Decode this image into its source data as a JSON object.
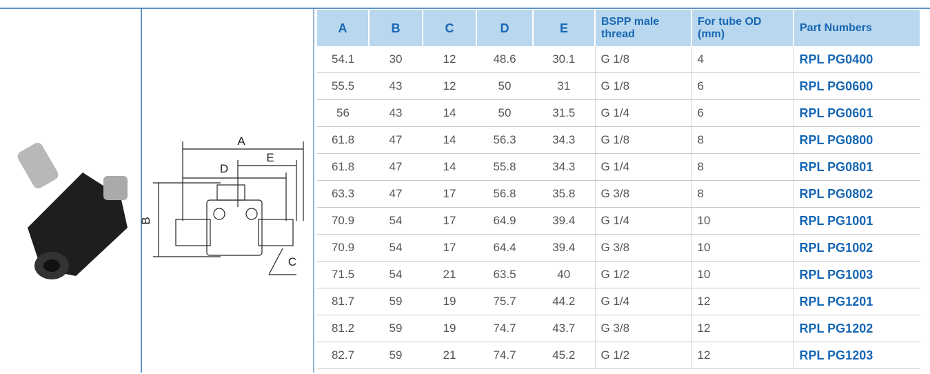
{
  "table": {
    "headers": [
      "A",
      "B",
      "C",
      "D",
      "E",
      "BSPP male thread",
      "For tube OD (mm)",
      "Part Numbers"
    ],
    "rows": [
      [
        "54.1",
        "30",
        "12",
        "48.6",
        "30.1",
        "G 1/8",
        "4",
        "RPL PG0400"
      ],
      [
        "55.5",
        "43",
        "12",
        "50",
        "31",
        "G 1/8",
        "6",
        "RPL PG0600"
      ],
      [
        "56",
        "43",
        "14",
        "50",
        "31.5",
        "G 1/4",
        "6",
        "RPL PG0601"
      ],
      [
        "61.8",
        "47",
        "14",
        "56.3",
        "34.3",
        "G 1/8",
        "8",
        "RPL PG0800"
      ],
      [
        "61.8",
        "47",
        "14",
        "55.8",
        "34.3",
        "G 1/4",
        "8",
        "RPL PG0801"
      ],
      [
        "63.3",
        "47",
        "17",
        "56.8",
        "35.8",
        "G 3/8",
        "8",
        "RPL PG0802"
      ],
      [
        "70.9",
        "54",
        "17",
        "64.9",
        "39.4",
        "G 1/4",
        "10",
        "RPL PG1001"
      ],
      [
        "70.9",
        "54",
        "17",
        "64.4",
        "39.4",
        "G 3/8",
        "10",
        "RPL PG1002"
      ],
      [
        "71.5",
        "54",
        "21",
        "63.5",
        "40",
        "G 1/2",
        "10",
        "RPL PG1003"
      ],
      [
        "81.7",
        "59",
        "19",
        "75.7",
        "44.2",
        "G 1/4",
        "12",
        "RPL PG1201"
      ],
      [
        "81.2",
        "59",
        "19",
        "74.7",
        "43.7",
        "G 3/8",
        "12",
        "RPL PG1202"
      ],
      [
        "82.7",
        "59",
        "21",
        "74.7",
        "45.2",
        "G 1/2",
        "12",
        "RPL PG1203"
      ]
    ]
  },
  "diagram": {
    "labels": [
      "A",
      "E",
      "D",
      "B",
      "C"
    ]
  }
}
